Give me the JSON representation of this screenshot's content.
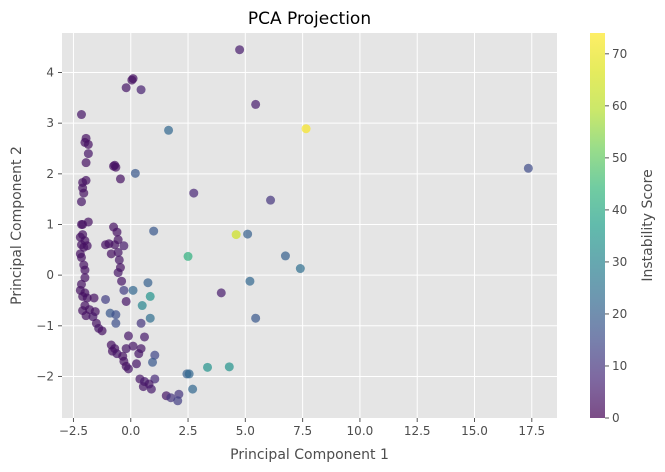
{
  "chart_data": {
    "type": "scatter",
    "title": "PCA Projection",
    "xlabel": "Principal Component 1",
    "ylabel": "Principal Component 2",
    "xlim": [
      -3.0,
      18.6
    ],
    "ylim": [
      -2.82,
      4.78
    ],
    "x_ticks": [
      -2.5,
      0.0,
      2.5,
      5.0,
      7.5,
      10.0,
      12.5,
      15.0,
      17.5
    ],
    "x_tick_labels": [
      "−2.5",
      "0.0",
      "2.5",
      "5.0",
      "7.5",
      "10.0",
      "12.5",
      "15.0",
      "17.5"
    ],
    "y_ticks": [
      -2,
      -1,
      0,
      1,
      2,
      3,
      4
    ],
    "y_tick_labels": [
      "−2",
      "−1",
      "0",
      "1",
      "2",
      "3",
      "4"
    ],
    "grid": true,
    "colormap": "viridis",
    "colorbar": {
      "label": "Instability Score",
      "range": [
        0,
        74
      ],
      "ticks": [
        0,
        10,
        20,
        30,
        40,
        50,
        60,
        70
      ],
      "tick_labels": [
        "0",
        "10",
        "20",
        "30",
        "40",
        "50",
        "60",
        "70"
      ]
    },
    "colors": {
      "plot_background": "#e5e5e5",
      "grid": "#ffffff",
      "marker_alpha": 0.7
    },
    "points": [
      {
        "x": 4.75,
        "y": 4.45,
        "c": 5
      },
      {
        "x": 0.1,
        "y": 3.88,
        "c": 3
      },
      {
        "x": 0.05,
        "y": 3.85,
        "c": 3
      },
      {
        "x": -0.2,
        "y": 3.7,
        "c": 4
      },
      {
        "x": 0.45,
        "y": 3.66,
        "c": 6
      },
      {
        "x": 5.45,
        "y": 3.37,
        "c": 5
      },
      {
        "x": -2.15,
        "y": 3.17,
        "c": 4
      },
      {
        "x": 1.65,
        "y": 2.86,
        "c": 22
      },
      {
        "x": 7.65,
        "y": 2.89,
        "c": 73
      },
      {
        "x": -1.95,
        "y": 2.7,
        "c": 3
      },
      {
        "x": -2.0,
        "y": 2.62,
        "c": 3
      },
      {
        "x": -1.85,
        "y": 2.58,
        "c": 3
      },
      {
        "x": -1.85,
        "y": 2.4,
        "c": 4
      },
      {
        "x": -1.95,
        "y": 2.22,
        "c": 3
      },
      {
        "x": -0.7,
        "y": 2.17,
        "c": 3
      },
      {
        "x": -0.65,
        "y": 2.13,
        "c": 3
      },
      {
        "x": -0.75,
        "y": 2.15,
        "c": 3
      },
      {
        "x": 17.35,
        "y": 2.11,
        "c": 15
      },
      {
        "x": 0.2,
        "y": 2.01,
        "c": 18
      },
      {
        "x": -0.45,
        "y": 1.9,
        "c": 3
      },
      {
        "x": -2.1,
        "y": 1.83,
        "c": 3
      },
      {
        "x": -1.95,
        "y": 1.87,
        "c": 3
      },
      {
        "x": -2.1,
        "y": 1.72,
        "c": 3
      },
      {
        "x": -2.05,
        "y": 1.62,
        "c": 3
      },
      {
        "x": 2.75,
        "y": 1.62,
        "c": 7
      },
      {
        "x": -2.15,
        "y": 1.45,
        "c": 4
      },
      {
        "x": 6.1,
        "y": 1.48,
        "c": 10
      },
      {
        "x": -1.85,
        "y": 1.05,
        "c": 3
      },
      {
        "x": -2.1,
        "y": 1.0,
        "c": 3
      },
      {
        "x": -2.15,
        "y": 1.0,
        "c": 3
      },
      {
        "x": -0.75,
        "y": 0.95,
        "c": 3
      },
      {
        "x": -0.6,
        "y": 0.85,
        "c": 3
      },
      {
        "x": 1.0,
        "y": 0.87,
        "c": 18
      },
      {
        "x": -2.1,
        "y": 0.8,
        "c": 3
      },
      {
        "x": -2.2,
        "y": 0.75,
        "c": 3
      },
      {
        "x": -2.0,
        "y": 0.68,
        "c": 3
      },
      {
        "x": -0.55,
        "y": 0.7,
        "c": 3
      },
      {
        "x": 4.6,
        "y": 0.8,
        "c": 64
      },
      {
        "x": 5.1,
        "y": 0.81,
        "c": 20
      },
      {
        "x": -2.15,
        "y": 0.6,
        "c": 3
      },
      {
        "x": -2.05,
        "y": 0.55,
        "c": 3
      },
      {
        "x": -1.9,
        "y": 0.58,
        "c": 3
      },
      {
        "x": -1.1,
        "y": 0.6,
        "c": 3
      },
      {
        "x": -0.95,
        "y": 0.62,
        "c": 3
      },
      {
        "x": -0.7,
        "y": 0.6,
        "c": 3
      },
      {
        "x": -0.3,
        "y": 0.58,
        "c": 5
      },
      {
        "x": -0.55,
        "y": 0.45,
        "c": 4
      },
      {
        "x": -2.2,
        "y": 0.42,
        "c": 3
      },
      {
        "x": -2.15,
        "y": 0.35,
        "c": 3
      },
      {
        "x": -0.85,
        "y": 0.42,
        "c": 3
      },
      {
        "x": -0.5,
        "y": 0.3,
        "c": 4
      },
      {
        "x": 2.5,
        "y": 0.37,
        "c": 42
      },
      {
        "x": 6.75,
        "y": 0.38,
        "c": 20
      },
      {
        "x": -2.05,
        "y": 0.2,
        "c": 3
      },
      {
        "x": -0.45,
        "y": 0.15,
        "c": 3
      },
      {
        "x": -0.55,
        "y": 0.05,
        "c": 4
      },
      {
        "x": -2.0,
        "y": 0.1,
        "c": 3
      },
      {
        "x": 7.4,
        "y": 0.13,
        "c": 24
      },
      {
        "x": -2.0,
        "y": -0.05,
        "c": 3
      },
      {
        "x": -0.4,
        "y": -0.12,
        "c": 4
      },
      {
        "x": 0.75,
        "y": -0.15,
        "c": 20
      },
      {
        "x": 5.2,
        "y": -0.12,
        "c": 22
      },
      {
        "x": -2.15,
        "y": -0.18,
        "c": 3
      },
      {
        "x": -0.3,
        "y": -0.3,
        "c": 12
      },
      {
        "x": 0.1,
        "y": -0.3,
        "c": 22
      },
      {
        "x": 0.85,
        "y": -0.42,
        "c": 34
      },
      {
        "x": -2.2,
        "y": -0.3,
        "c": 3
      },
      {
        "x": 3.95,
        "y": -0.35,
        "c": 5
      },
      {
        "x": -2.0,
        "y": -0.35,
        "c": 3
      },
      {
        "x": -2.1,
        "y": -0.42,
        "c": 3
      },
      {
        "x": -1.9,
        "y": -0.45,
        "c": 3
      },
      {
        "x": -1.6,
        "y": -0.45,
        "c": 3
      },
      {
        "x": -1.1,
        "y": -0.48,
        "c": 12
      },
      {
        "x": -0.2,
        "y": -0.52,
        "c": 4
      },
      {
        "x": 0.5,
        "y": -0.6,
        "c": 30
      },
      {
        "x": -2.0,
        "y": -0.6,
        "c": 3
      },
      {
        "x": -2.1,
        "y": -0.7,
        "c": 3
      },
      {
        "x": -1.8,
        "y": -0.68,
        "c": 3
      },
      {
        "x": -1.55,
        "y": -0.72,
        "c": 3
      },
      {
        "x": -0.9,
        "y": -0.75,
        "c": 18
      },
      {
        "x": -0.65,
        "y": -0.78,
        "c": 16
      },
      {
        "x": -1.95,
        "y": -0.8,
        "c": 3
      },
      {
        "x": -1.65,
        "y": -0.82,
        "c": 4
      },
      {
        "x": 0.85,
        "y": -0.85,
        "c": 24
      },
      {
        "x": 5.45,
        "y": -0.85,
        "c": 18
      },
      {
        "x": -1.5,
        "y": -0.95,
        "c": 3
      },
      {
        "x": -0.65,
        "y": -0.95,
        "c": 16
      },
      {
        "x": 0.45,
        "y": -0.95,
        "c": 10
      },
      {
        "x": -1.4,
        "y": -1.05,
        "c": 4
      },
      {
        "x": -1.25,
        "y": -1.1,
        "c": 3
      },
      {
        "x": -0.1,
        "y": -1.2,
        "c": 4
      },
      {
        "x": 0.6,
        "y": -1.22,
        "c": 5
      },
      {
        "x": -0.85,
        "y": -1.38,
        "c": 3
      },
      {
        "x": 0.1,
        "y": -1.4,
        "c": 4
      },
      {
        "x": -0.7,
        "y": -1.45,
        "c": 3
      },
      {
        "x": 0.45,
        "y": -1.45,
        "c": 4
      },
      {
        "x": -0.2,
        "y": -1.45,
        "c": 4
      },
      {
        "x": -0.8,
        "y": -1.5,
        "c": 3
      },
      {
        "x": -0.6,
        "y": -1.55,
        "c": 4
      },
      {
        "x": 0.35,
        "y": -1.55,
        "c": 4
      },
      {
        "x": -0.35,
        "y": -1.6,
        "c": 3
      },
      {
        "x": 1.05,
        "y": -1.58,
        "c": 14
      },
      {
        "x": -0.3,
        "y": -1.7,
        "c": 3
      },
      {
        "x": 0.25,
        "y": -1.75,
        "c": 4
      },
      {
        "x": 0.95,
        "y": -1.72,
        "c": 18
      },
      {
        "x": -0.2,
        "y": -1.8,
        "c": 3
      },
      {
        "x": 3.35,
        "y": -1.82,
        "c": 34
      },
      {
        "x": 4.3,
        "y": -1.81,
        "c": 34
      },
      {
        "x": -0.1,
        "y": -1.85,
        "c": 4
      },
      {
        "x": 2.45,
        "y": -1.95,
        "c": 20
      },
      {
        "x": 2.55,
        "y": -1.95,
        "c": 22
      },
      {
        "x": 0.4,
        "y": -2.05,
        "c": 4
      },
      {
        "x": 0.6,
        "y": -2.1,
        "c": 5
      },
      {
        "x": 1.05,
        "y": -2.05,
        "c": 8
      },
      {
        "x": 0.8,
        "y": -2.15,
        "c": 4
      },
      {
        "x": 0.55,
        "y": -2.2,
        "c": 4
      },
      {
        "x": 2.7,
        "y": -2.25,
        "c": 22
      },
      {
        "x": 0.9,
        "y": -2.25,
        "c": 5
      },
      {
        "x": 1.55,
        "y": -2.38,
        "c": 4
      },
      {
        "x": 1.75,
        "y": -2.42,
        "c": 10
      },
      {
        "x": 2.1,
        "y": -2.35,
        "c": 10
      },
      {
        "x": 2.05,
        "y": -2.48,
        "c": 12
      }
    ]
  }
}
